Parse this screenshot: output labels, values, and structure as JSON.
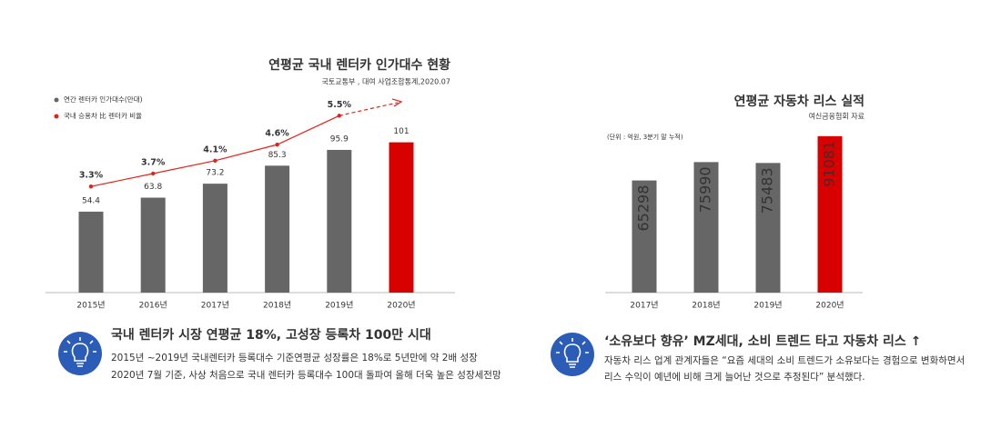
{
  "chart_data": [
    {
      "type": "bar",
      "title": "연평균 국내 렌터카 인가대수 현황",
      "subtitle": "국토교통부 , 대여 사업조합통계,2020.07",
      "categories": [
        "2015년",
        "2016년",
        "2017년",
        "2018년",
        "2019년",
        "2020년"
      ],
      "series": [
        {
          "name": "연간 렌터카 인가대수(만대)",
          "color": "#666666",
          "colors": [
            "#666666",
            "#666666",
            "#666666",
            "#666666",
            "#666666",
            "#d90000"
          ],
          "values": [
            54.4,
            63.8,
            73.2,
            85.3,
            95.9,
            101
          ]
        },
        {
          "name": "국내 승용차 比 렌터카 비율",
          "type": "line",
          "axis": "y2",
          "color": "#e2231a",
          "values": [
            3.3,
            3.7,
            4.1,
            4.6,
            5.5,
            null
          ],
          "value_labels": [
            "3.3%",
            "3.7%",
            "4.1%",
            "4.6%",
            "5.5%",
            null
          ]
        }
      ],
      "ylim": [
        0,
        160
      ],
      "y2lim": [
        0,
        7.4
      ],
      "legend": "top-left"
    },
    {
      "type": "bar",
      "title": "연평균 자동차 리스 실적",
      "subtitle": "여신금융협회 자료",
      "note": "(단위 : 억원, 3분기 말 누적)",
      "categories": [
        "2017년",
        "2018년",
        "2019년",
        "2020년"
      ],
      "series": [
        {
          "name": "자동차 리스 실적",
          "color": "#666666",
          "colors": [
            "#666666",
            "#666666",
            "#666666",
            "#d90000"
          ],
          "values": [
            65298,
            75990,
            75483,
            91081
          ]
        }
      ],
      "ylim": [
        0,
        100000
      ]
    }
  ],
  "insights": [
    {
      "title": "국내 렌터카 시장 연평균 18%, 고성장 등록차 100만 시대",
      "lines": [
        "2015년 ~2019년 국내렌터카 등록대수 기준연평균 성장률은 18%로 5년만에 약 2배 성장",
        "2020년 7월 기준, 사상 처음으로 국내 렌터카 등록대수 100대 돌파여 올해 더욱 높은 성장세전망"
      ]
    },
    {
      "title": "‘소유보다 향유’ MZ세대, 소비 트렌드 타고 자동차 리스 ↑",
      "lines": [
        "자동차 리스 업계 관계자들은 “요즘 세대의 소비 트렌드가 소유보다는 경험으로 변화하면서",
        "리스 수익이 예년에 비해 크게 늘어난 것으로 추정된다” 분석했다."
      ]
    }
  ]
}
